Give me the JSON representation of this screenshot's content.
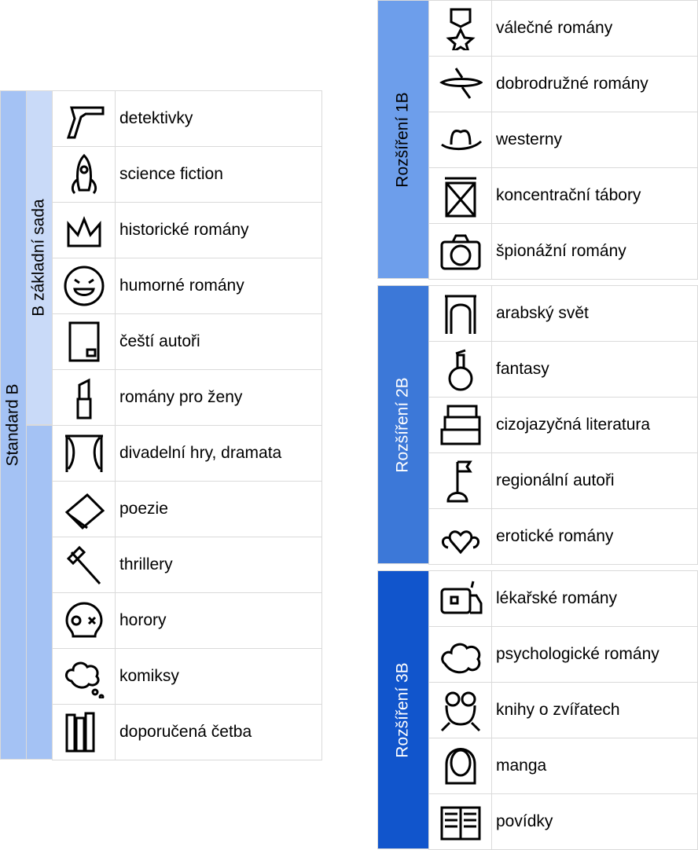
{
  "colors": {
    "standard_b": "#a4c2f4",
    "zakladni_sada": "#c9daf8",
    "rozsireni_1b": "#6d9eeb",
    "rozsireni_2b": "#3c78d8",
    "rozsireni_3b": "#1155cc"
  },
  "left": {
    "group_label": "Standard B",
    "subgroup_label": "B základní sada",
    "rows": [
      {
        "icon": "pistol-icon",
        "label": "detektivky"
      },
      {
        "icon": "rocket-icon",
        "label": "science fiction"
      },
      {
        "icon": "crown-icon",
        "label": "historické romány"
      },
      {
        "icon": "laughing-face-icon",
        "label": "humorné romány"
      },
      {
        "icon": "book-icon",
        "label": "čeští autoři"
      },
      {
        "icon": "lipstick-icon",
        "label": "romány pro ženy"
      },
      {
        "icon": "theater-curtain-icon",
        "label": "divadelní hry, dramata"
      },
      {
        "icon": "notepad-icon",
        "label": "poezie"
      },
      {
        "icon": "axe-icon",
        "label": "thrillery"
      },
      {
        "icon": "skull-icon",
        "label": "horory"
      },
      {
        "icon": "thought-bubble-icon",
        "label": "komiksy"
      },
      {
        "icon": "books-icon",
        "label": "doporučená četba"
      }
    ]
  },
  "right": [
    {
      "label": "Rozšíření 1B",
      "color": "rozsireni_1b",
      "rows": [
        {
          "icon": "medal-icon",
          "label": "válečné romány"
        },
        {
          "icon": "airplane-icon",
          "label": "dobrodružné romány"
        },
        {
          "icon": "cowboy-hat-icon",
          "label": "westerny"
        },
        {
          "icon": "watchtower-icon",
          "label": "koncentrační tábory"
        },
        {
          "icon": "camera-icon",
          "label": "špionážní romány"
        }
      ]
    },
    {
      "label": "Rozšíření 2B",
      "color": "rozsireni_2b",
      "rows": [
        {
          "icon": "arch-icon",
          "label": "arabský svět"
        },
        {
          "icon": "potion-icon",
          "label": "fantasy"
        },
        {
          "icon": "drawers-icon",
          "label": "cizojazyčná literatura"
        },
        {
          "icon": "flag-icon",
          "label": "regionální autoři"
        },
        {
          "icon": "winged-heart-icon",
          "label": "erotické romány"
        }
      ]
    },
    {
      "label": "Rozšíření 3B",
      "color": "rozsireni_3b",
      "rows": [
        {
          "icon": "ambulance-icon",
          "label": "lékařské romány"
        },
        {
          "icon": "brain-cloud-icon",
          "label": "psychologické romány"
        },
        {
          "icon": "frog-icon",
          "label": "knihy o zvířatech"
        },
        {
          "icon": "mask-icon",
          "label": "manga"
        },
        {
          "icon": "open-book-icon",
          "label": "povídky"
        }
      ]
    }
  ]
}
